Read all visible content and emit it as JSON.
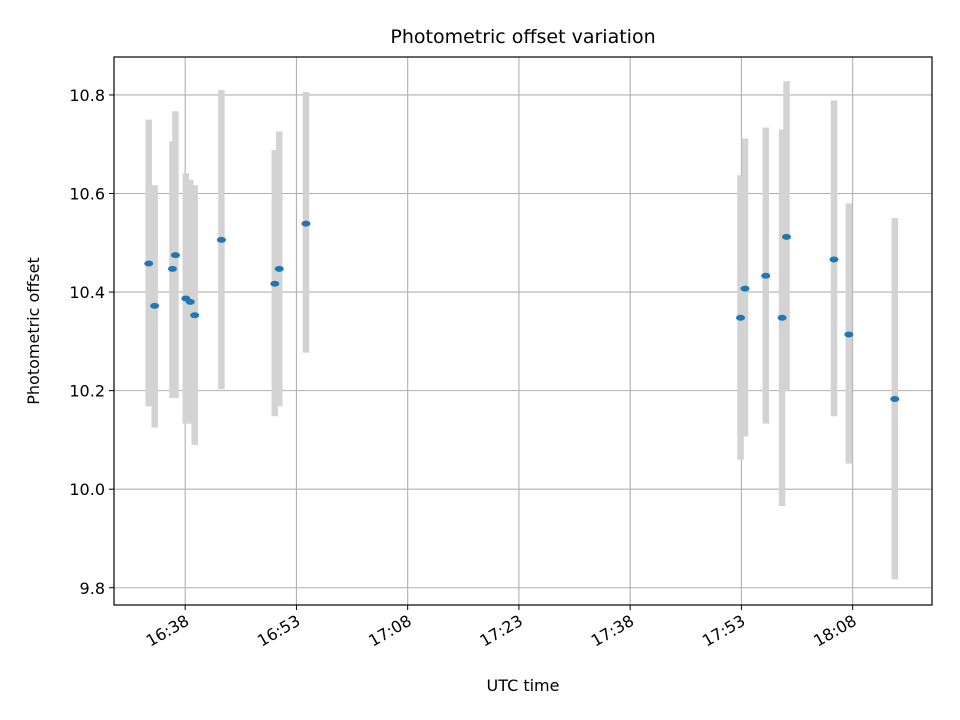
{
  "chart_data": {
    "type": "scatter",
    "title": "Photometric offset variation",
    "xlabel": "UTC time",
    "ylabel": "Photometric offset",
    "x_unit": "UTC time (HH:MM)",
    "x_ticks": [
      "16:38",
      "16:53",
      "17:08",
      "17:23",
      "17:38",
      "17:53",
      "18:08"
    ],
    "y_ticks": [
      "9.8",
      "10.0",
      "10.2",
      "10.4",
      "10.6",
      "10.8"
    ],
    "xlim": [
      "16:28:24",
      "18:18:42"
    ],
    "ylim": [
      9.765,
      10.877
    ],
    "grid": true,
    "legend": "none",
    "colors": {
      "point": "#1f77b4",
      "errorbar": "#d3d3d3",
      "grid": "#b0b0b0",
      "axes": "#000000"
    },
    "series": [
      {
        "marker": "ellipse",
        "points": [
          {
            "x": "16:33:05",
            "y": 10.458,
            "ylo": 10.168,
            "yhi": 10.75
          },
          {
            "x": "16:33:53",
            "y": 10.372,
            "ylo": 10.125,
            "yhi": 10.617
          },
          {
            "x": "16:36:17",
            "y": 10.447,
            "ylo": 10.185,
            "yhi": 10.706
          },
          {
            "x": "16:36:41",
            "y": 10.475,
            "ylo": 10.185,
            "yhi": 10.767
          },
          {
            "x": "16:38:05",
            "y": 10.387,
            "ylo": 10.133,
            "yhi": 10.641
          },
          {
            "x": "16:38:41",
            "y": 10.38,
            "ylo": 10.133,
            "yhi": 10.628
          },
          {
            "x": "16:39:17",
            "y": 10.353,
            "ylo": 10.09,
            "yhi": 10.617
          },
          {
            "x": "16:42:53",
            "y": 10.506,
            "ylo": 10.203,
            "yhi": 10.81
          },
          {
            "x": "16:50:05",
            "y": 10.417,
            "ylo": 10.148,
            "yhi": 10.688
          },
          {
            "x": "16:50:41",
            "y": 10.447,
            "ylo": 10.168,
            "yhi": 10.726
          },
          {
            "x": "16:54:17",
            "y": 10.539,
            "ylo": 10.277,
            "yhi": 10.806
          },
          {
            "x": "17:52:53",
            "y": 10.348,
            "ylo": 10.06,
            "yhi": 10.637
          },
          {
            "x": "17:53:29",
            "y": 10.407,
            "ylo": 10.107,
            "yhi": 10.712
          },
          {
            "x": "17:56:17",
            "y": 10.433,
            "ylo": 10.133,
            "yhi": 10.734
          },
          {
            "x": "17:58:29",
            "y": 10.348,
            "ylo": 9.966,
            "yhi": 10.73
          },
          {
            "x": "17:59:05",
            "y": 10.512,
            "ylo": 10.199,
            "yhi": 10.828
          },
          {
            "x": "18:05:29",
            "y": 10.466,
            "ylo": 10.148,
            "yhi": 10.789
          },
          {
            "x": "18:07:29",
            "y": 10.314,
            "ylo": 10.052,
            "yhi": 10.58
          },
          {
            "x": "18:13:41",
            "y": 10.183,
            "ylo": 9.817,
            "yhi": 10.55
          }
        ]
      }
    ]
  }
}
